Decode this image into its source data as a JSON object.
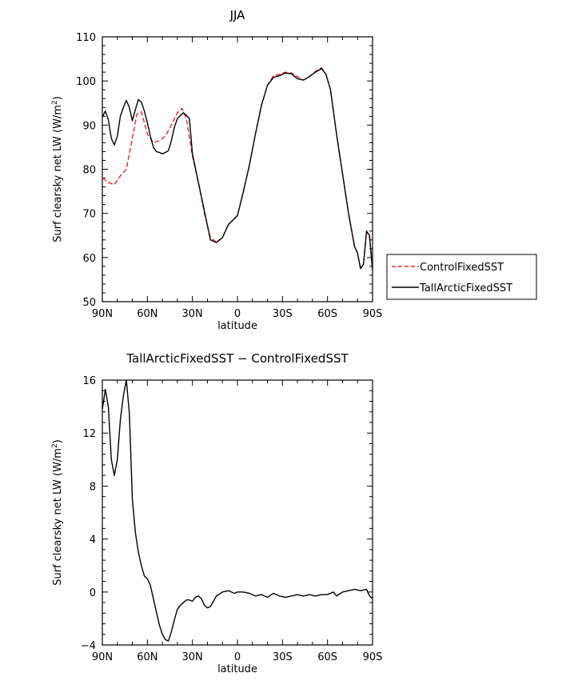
{
  "chart_data": [
    {
      "type": "line",
      "title": "JJA",
      "xlabel": "latitude",
      "ylabel": "Surf clearsky net LW (W/m",
      "ylabel_sup": "2",
      "ylabel_end": ")",
      "xlim": [
        90,
        -90
      ],
      "ylim": [
        50,
        110
      ],
      "x_ticks": [
        90,
        60,
        30,
        0,
        -30,
        -60,
        -90
      ],
      "x_tick_labels": [
        "90N",
        "60N",
        "30N",
        "0",
        "30S",
        "60S",
        "90S"
      ],
      "y_ticks": [
        50,
        60,
        70,
        80,
        90,
        100,
        110
      ],
      "y_tick_labels": [
        "50",
        "60",
        "70",
        "80",
        "90",
        "100",
        "110"
      ],
      "legend": {
        "placement": "right"
      },
      "series": [
        {
          "name": "ControlFixedSST",
          "color": "#e8252a",
          "dash": "dashed",
          "x": [
            90,
            86,
            82,
            78,
            74,
            70,
            67,
            64,
            60,
            56,
            52,
            48,
            44,
            40,
            37,
            34,
            30,
            26,
            22,
            18,
            14,
            10,
            6,
            3,
            0,
            -4,
            -8,
            -12,
            -16,
            -20,
            -24,
            -28,
            -32,
            -36,
            -40,
            -44,
            -48,
            -52,
            -56,
            -59,
            -62,
            -66,
            -70,
            -74,
            -78,
            -80,
            -82,
            -84,
            -86,
            -88,
            -90
          ],
          "y": [
            78,
            77,
            76.5,
            78.5,
            80,
            87,
            92.5,
            93,
            88,
            86,
            86.5,
            87.5,
            90,
            92.8,
            93.8,
            91.5,
            83,
            77,
            70,
            64.5,
            63.5,
            64.5,
            67.5,
            68.5,
            69.5,
            75,
            81,
            88,
            94.5,
            99,
            101.2,
            101.5,
            102,
            101.8,
            101,
            100.2,
            101,
            102.2,
            103,
            101.5,
            98,
            88,
            79,
            70,
            62.5,
            61,
            57.5,
            58.5,
            66,
            64.5,
            57.5
          ]
        },
        {
          "name": "TallArcticFixedSST",
          "color": "#000000",
          "dash": "solid",
          "x": [
            90,
            88,
            86,
            84,
            82,
            80,
            78,
            76,
            74,
            72,
            70,
            68,
            66,
            64,
            62,
            60,
            58,
            56,
            54,
            52,
            50,
            48,
            46,
            44,
            42,
            40,
            38,
            36,
            34,
            32,
            30,
            26,
            22,
            18,
            14,
            10,
            6,
            3,
            0,
            -4,
            -8,
            -12,
            -16,
            -20,
            -24,
            -28,
            -32,
            -36,
            -40,
            -44,
            -48,
            -52,
            -56,
            -59,
            -62,
            -66,
            -70,
            -74,
            -78,
            -80,
            -82,
            -84,
            -86,
            -88,
            -90
          ],
          "y": [
            91.8,
            93.2,
            91.2,
            87,
            85.5,
            87.5,
            92,
            94,
            95.6,
            94,
            91,
            93.5,
            95.8,
            95.2,
            93.2,
            90.5,
            87.5,
            85,
            84,
            83.8,
            83.5,
            83.8,
            84.2,
            86.5,
            89.5,
            91.5,
            92.2,
            92.8,
            92.2,
            91.5,
            83.5,
            77,
            70.5,
            64,
            63.4,
            64.5,
            67.5,
            68.5,
            69.5,
            75,
            81,
            88,
            94.5,
            99,
            100.8,
            101.2,
            101.8,
            101.6,
            100.5,
            100.2,
            101,
            102,
            102.8,
            101.5,
            98,
            88,
            79,
            70,
            62.5,
            61,
            57.5,
            58.5,
            66,
            65,
            57
          ]
        }
      ]
    },
    {
      "type": "line",
      "title": "TallArcticFixedSST − ControlFixedSST",
      "xlabel": "latitude",
      "ylabel": "Surf clearsky net LW (W/m",
      "ylabel_sup": "2",
      "ylabel_end": ")",
      "xlim": [
        90,
        -90
      ],
      "ylim": [
        -4,
        16
      ],
      "x_ticks": [
        90,
        60,
        30,
        0,
        -30,
        -60,
        -90
      ],
      "x_tick_labels": [
        "90N",
        "60N",
        "30N",
        "0",
        "30S",
        "60S",
        "90S"
      ],
      "y_ticks": [
        -4,
        0,
        4,
        8,
        12,
        16
      ],
      "y_tick_labels": [
        "−4",
        "0",
        "4",
        "8",
        "12",
        "16"
      ],
      "series": [
        {
          "color": "#000000",
          "dash": "solid",
          "x": [
            90,
            88,
            86,
            84,
            82,
            80,
            78,
            76,
            74,
            72,
            70,
            68,
            66,
            64,
            62,
            60,
            58,
            56,
            54,
            52,
            50,
            48,
            46,
            44,
            42,
            40,
            38,
            36,
            34,
            32,
            30,
            28,
            26,
            24,
            22,
            20,
            18,
            14,
            10,
            6,
            2,
            0,
            -4,
            -8,
            -12,
            -16,
            -20,
            -24,
            -28,
            -32,
            -36,
            -40,
            -44,
            -48,
            -52,
            -56,
            -60,
            -64,
            -66,
            -70,
            -74,
            -78,
            -82,
            -86,
            -88,
            -90
          ],
          "y": [
            13.8,
            15.3,
            14,
            10,
            8.8,
            10,
            13,
            14.8,
            16,
            13.5,
            7,
            4.5,
            3,
            2,
            1.2,
            1,
            0.5,
            -0.5,
            -1.5,
            -2.5,
            -3.2,
            -3.6,
            -3.7,
            -3,
            -2.1,
            -1.3,
            -1,
            -0.8,
            -0.6,
            -0.6,
            -0.7,
            -0.4,
            -0.3,
            -0.5,
            -1,
            -1.2,
            -1.1,
            -0.3,
            0,
            0.1,
            -0.1,
            0,
            0,
            -0.1,
            -0.3,
            -0.2,
            -0.4,
            -0.1,
            -0.3,
            -0.4,
            -0.3,
            -0.2,
            -0.3,
            -0.2,
            -0.3,
            -0.2,
            -0.2,
            0,
            -0.3,
            0,
            0.1,
            0.2,
            0.1,
            0.2,
            -0.3,
            -0.5
          ]
        }
      ]
    }
  ]
}
